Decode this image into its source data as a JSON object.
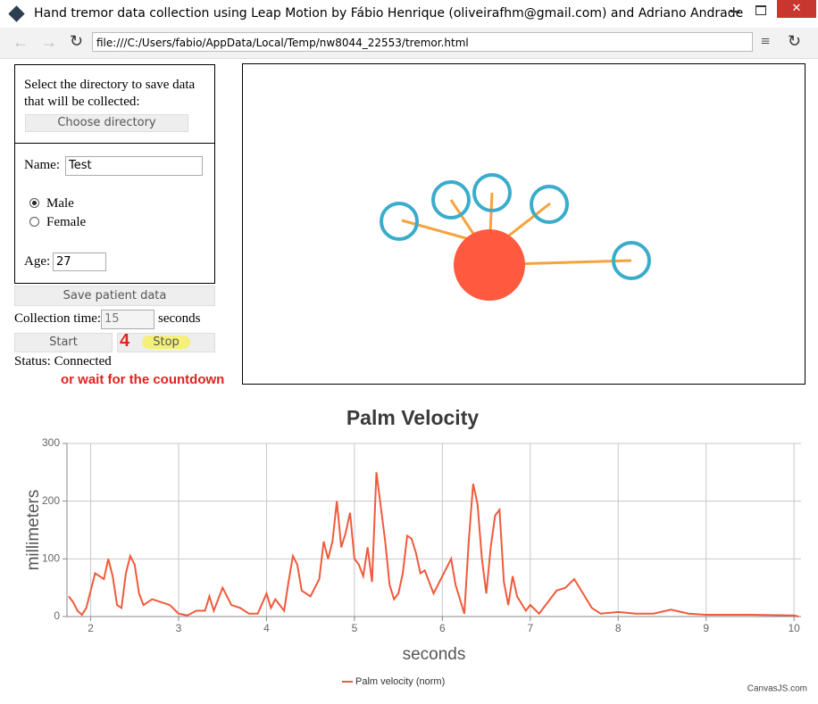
{
  "window": {
    "title": "Hand tremor data collection using Leap Motion by Fábio Henrique (oliveirafhm@gmail.com) and Adriano Andrade"
  },
  "address_bar": {
    "url": "file:///C:/Users/fabio/AppData/Local/Temp/nw8044_22553/tremor.html"
  },
  "form": {
    "directory_prompt": "Select the directory to save data that will be collected:",
    "choose_button": "Choose directory",
    "name_label": "Name:",
    "name_value": "Test",
    "gender_options": [
      "Male",
      "Female"
    ],
    "age_label": "Age:",
    "age_value": 27,
    "save_button": "Save patient data",
    "collection_time_label": "Collection time:",
    "collection_time_value": 15,
    "collection_time_unit": "seconds",
    "start_button": "Start",
    "stop_button": "Stop",
    "status": "Status: Connected"
  },
  "annotations": {
    "step_number": "4",
    "hint": "or wait for the countdown"
  },
  "chart_data": {
    "type": "line",
    "title": "Palm Velocity",
    "x_label": "seconds",
    "y_label": "millimeters",
    "x": [
      1.75,
      1.8,
      1.85,
      1.9,
      1.95,
      2.0,
      2.05,
      2.1,
      2.15,
      2.2,
      2.25,
      2.3,
      2.35,
      2.4,
      2.45,
      2.5,
      2.55,
      2.6,
      2.7,
      2.8,
      2.9,
      3.0,
      3.1,
      3.2,
      3.3,
      3.35,
      3.4,
      3.5,
      3.6,
      3.7,
      3.8,
      3.9,
      4.0,
      4.05,
      4.1,
      4.2,
      4.25,
      4.3,
      4.35,
      4.4,
      4.5,
      4.6,
      4.65,
      4.7,
      4.75,
      4.8,
      4.85,
      4.9,
      4.95,
      5.0,
      5.05,
      5.1,
      5.15,
      5.2,
      5.25,
      5.3,
      5.35,
      5.4,
      5.45,
      5.5,
      5.55,
      5.6,
      5.65,
      5.7,
      5.75,
      5.8,
      5.9,
      6.0,
      6.1,
      6.15,
      6.25,
      6.3,
      6.35,
      6.4,
      6.45,
      6.5,
      6.55,
      6.6,
      6.65,
      6.7,
      6.75,
      6.8,
      6.85,
      6.95,
      7.0,
      7.1,
      7.2,
      7.3,
      7.4,
      7.5,
      7.6,
      7.7,
      7.8,
      8.0,
      8.2,
      8.4,
      8.6,
      8.8,
      9.0,
      9.5,
      10.0,
      10.05
    ],
    "series": [
      {
        "name": "Palm velocity (norm)",
        "color": "#f05a3c",
        "values": [
          35,
          25,
          10,
          3,
          15,
          45,
          75,
          70,
          65,
          100,
          70,
          20,
          15,
          75,
          105,
          90,
          40,
          20,
          30,
          25,
          20,
          5,
          2,
          10,
          10,
          35,
          10,
          50,
          20,
          15,
          5,
          5,
          40,
          15,
          30,
          10,
          60,
          105,
          90,
          45,
          35,
          65,
          130,
          100,
          130,
          200,
          120,
          145,
          180,
          100,
          90,
          70,
          120,
          60,
          250,
          190,
          130,
          55,
          30,
          40,
          75,
          140,
          135,
          110,
          75,
          80,
          40,
          70,
          100,
          55,
          5,
          130,
          230,
          195,
          100,
          40,
          120,
          175,
          185,
          60,
          20,
          70,
          35,
          10,
          20,
          5,
          25,
          45,
          50,
          65,
          40,
          15,
          5,
          8,
          5,
          5,
          12,
          5,
          3,
          3,
          2,
          0
        ]
      }
    ],
    "xlim": [
      1.73,
      10.08
    ],
    "ylim": [
      0,
      300
    ],
    "xticks": [
      2,
      3,
      4,
      5,
      6,
      7,
      8,
      9,
      10
    ],
    "yticks": [
      0,
      100,
      200,
      300
    ],
    "grid": true,
    "credit": "CanvasJS.com"
  }
}
